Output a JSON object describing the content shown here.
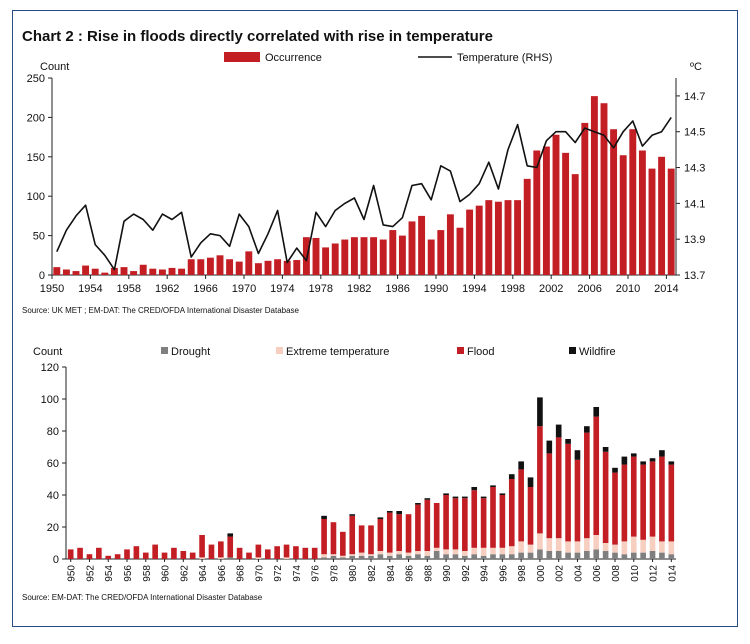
{
  "chart_data": [
    {
      "type": "bar",
      "title": "Chart 2 : Rise in floods directly correlated with rise in temperature",
      "ylabel": "Count",
      "y2label": "ºC",
      "source": "Source: UK MET ; EM-DAT: The CRED/OFDA International Disaster Database",
      "ylim": [
        0,
        250
      ],
      "yticks": [
        0,
        50,
        100,
        150,
        200,
        250
      ],
      "y2lim": [
        13.7,
        14.8
      ],
      "y2ticks": [
        13.7,
        13.9,
        14.1,
        14.3,
        14.5,
        14.7
      ],
      "xtick_labels": [
        "1950",
        "1954",
        "1958",
        "1962",
        "1966",
        "1970",
        "1974",
        "1978",
        "1982",
        "1986",
        "1990",
        "1994",
        "1998",
        "2002",
        "2006",
        "2010",
        "2014"
      ],
      "legend": [
        "Occurrence",
        "Temperature (RHS)"
      ],
      "legend_position": "top",
      "x": [
        1950,
        1951,
        1952,
        1953,
        1954,
        1955,
        1956,
        1957,
        1958,
        1959,
        1960,
        1961,
        1962,
        1963,
        1964,
        1965,
        1966,
        1967,
        1968,
        1969,
        1970,
        1971,
        1972,
        1973,
        1974,
        1975,
        1976,
        1977,
        1978,
        1979,
        1980,
        1981,
        1982,
        1983,
        1984,
        1985,
        1986,
        1987,
        1988,
        1989,
        1990,
        1991,
        1992,
        1993,
        1994,
        1995,
        1996,
        1997,
        1998,
        1999,
        2000,
        2001,
        2002,
        2003,
        2004,
        2005,
        2006,
        2007,
        2008,
        2009,
        2010,
        2011,
        2012,
        2013,
        2014
      ],
      "series": [
        {
          "name": "Occurrence",
          "kind": "bar",
          "color": "#c41e25",
          "values": [
            10,
            7,
            5,
            12,
            8,
            3,
            9,
            10,
            5,
            13,
            8,
            7,
            9,
            8,
            20,
            20,
            22,
            25,
            20,
            17,
            30,
            15,
            18,
            20,
            18,
            19,
            48,
            47,
            35,
            40,
            45,
            48,
            48,
            48,
            45,
            57,
            50,
            68,
            75,
            45,
            57,
            77,
            60,
            83,
            88,
            95,
            93,
            95,
            95,
            122,
            158,
            163,
            178,
            155,
            128,
            193,
            227,
            218,
            185,
            152,
            185,
            158,
            135,
            150,
            135
          ]
        },
        {
          "name": "Temperature (RHS)",
          "kind": "line",
          "axis": "right",
          "color": "#111111",
          "values": [
            13.83,
            13.95,
            14.03,
            14.09,
            13.87,
            13.81,
            13.73,
            14.0,
            14.04,
            14.01,
            13.95,
            14.04,
            14.01,
            14.05,
            13.8,
            13.88,
            13.93,
            13.92,
            13.86,
            14.04,
            13.97,
            13.82,
            13.93,
            14.06,
            13.77,
            13.85,
            13.78,
            14.05,
            13.97,
            14.06,
            14.1,
            14.13,
            14.01,
            14.2,
            13.98,
            13.97,
            14.02,
            14.2,
            14.21,
            14.12,
            14.31,
            14.28,
            14.11,
            14.15,
            14.21,
            14.33,
            14.18,
            14.4,
            14.54,
            14.31,
            14.3,
            14.45,
            14.5,
            14.5,
            14.44,
            14.52,
            14.5,
            14.48,
            14.41,
            14.5,
            14.56,
            14.42,
            14.48,
            14.5,
            14.58
          ]
        }
      ]
    },
    {
      "type": "bar",
      "stacked": true,
      "ylabel": "Count",
      "source": "Source: EM-DAT: The CRED/OFDA International Disaster Database",
      "ylim": [
        0,
        120
      ],
      "yticks": [
        0,
        20,
        40,
        60,
        80,
        100,
        120
      ],
      "xtick_labels": [
        "950",
        "952",
        "954",
        "956",
        "958",
        "960",
        "962",
        "964",
        "966",
        "968",
        "970",
        "972",
        "974",
        "976",
        "978",
        "980",
        "982",
        "984",
        "986",
        "988",
        "990",
        "992",
        "994",
        "996",
        "998",
        "000",
        "002",
        "004",
        "006",
        "008",
        "010",
        "012",
        "014"
      ],
      "legend": [
        "Drought",
        "Extreme temperature",
        "Flood",
        "Wildfire"
      ],
      "legend_position": "top",
      "x": [
        1950,
        1951,
        1952,
        1953,
        1954,
        1955,
        1956,
        1957,
        1958,
        1959,
        1960,
        1961,
        1962,
        1963,
        1964,
        1965,
        1966,
        1967,
        1968,
        1969,
        1970,
        1971,
        1972,
        1973,
        1974,
        1975,
        1976,
        1977,
        1978,
        1979,
        1980,
        1981,
        1982,
        1983,
        1984,
        1985,
        1986,
        1987,
        1988,
        1989,
        1990,
        1991,
        1992,
        1993,
        1994,
        1995,
        1996,
        1997,
        1998,
        1999,
        2000,
        2001,
        2002,
        2003,
        2004,
        2005,
        2006,
        2007,
        2008,
        2009,
        2010,
        2011,
        2012,
        2013,
        2014
      ],
      "series": [
        {
          "name": "Drought",
          "color": "#7f7f7f",
          "values": [
            0,
            0,
            0,
            0,
            0,
            0,
            0,
            0,
            0,
            0,
            0,
            0,
            0,
            0,
            0,
            0,
            0,
            1,
            0,
            0,
            0,
            0,
            0,
            0,
            0,
            0,
            0,
            1,
            2,
            1,
            2,
            2,
            2,
            3,
            2,
            3,
            2,
            3,
            2,
            5,
            3,
            3,
            2,
            3,
            2,
            3,
            3,
            3,
            4,
            4,
            6,
            5,
            5,
            4,
            4,
            5,
            6,
            5,
            4,
            3,
            4,
            4,
            5,
            4,
            3
          ]
        },
        {
          "name": "Extreme temperature",
          "color": "#f6cfc0",
          "values": [
            0,
            0,
            0,
            0,
            0,
            0,
            0,
            0,
            0,
            0,
            0,
            0,
            0,
            0,
            1,
            0,
            1,
            0,
            0,
            0,
            1,
            0,
            0,
            1,
            0,
            0,
            0,
            2,
            1,
            1,
            1,
            2,
            1,
            2,
            2,
            2,
            2,
            2,
            3,
            2,
            3,
            3,
            3,
            4,
            5,
            4,
            4,
            5,
            7,
            5,
            10,
            8,
            8,
            7,
            7,
            8,
            9,
            5,
            5,
            8,
            10,
            8,
            9,
            7,
            8
          ]
        },
        {
          "name": "Flood",
          "color": "#c41e25",
          "values": [
            6,
            7,
            3,
            7,
            2,
            3,
            6,
            8,
            4,
            9,
            4,
            7,
            5,
            4,
            14,
            9,
            10,
            13,
            7,
            4,
            8,
            6,
            8,
            8,
            8,
            7,
            7,
            22,
            20,
            15,
            24,
            17,
            18,
            20,
            25,
            23,
            24,
            29,
            32,
            28,
            34,
            32,
            33,
            36,
            31,
            38,
            33,
            42,
            45,
            36,
            67,
            53,
            63,
            61,
            51,
            66,
            74,
            57,
            45,
            48,
            50,
            47,
            47,
            53,
            48
          ]
        },
        {
          "name": "Wildfire",
          "color": "#111111",
          "values": [
            0,
            0,
            0,
            0,
            0,
            0,
            0,
            0,
            0,
            0,
            0,
            0,
            0,
            0,
            0,
            0,
            0,
            2,
            0,
            0,
            0,
            0,
            0,
            0,
            0,
            0,
            0,
            2,
            0,
            0,
            1,
            0,
            0,
            1,
            1,
            2,
            0,
            1,
            1,
            0,
            1,
            1,
            1,
            2,
            1,
            1,
            1,
            3,
            5,
            6,
            18,
            8,
            8,
            3,
            6,
            4,
            6,
            3,
            3,
            5,
            2,
            2,
            2,
            4,
            2
          ]
        }
      ]
    }
  ]
}
